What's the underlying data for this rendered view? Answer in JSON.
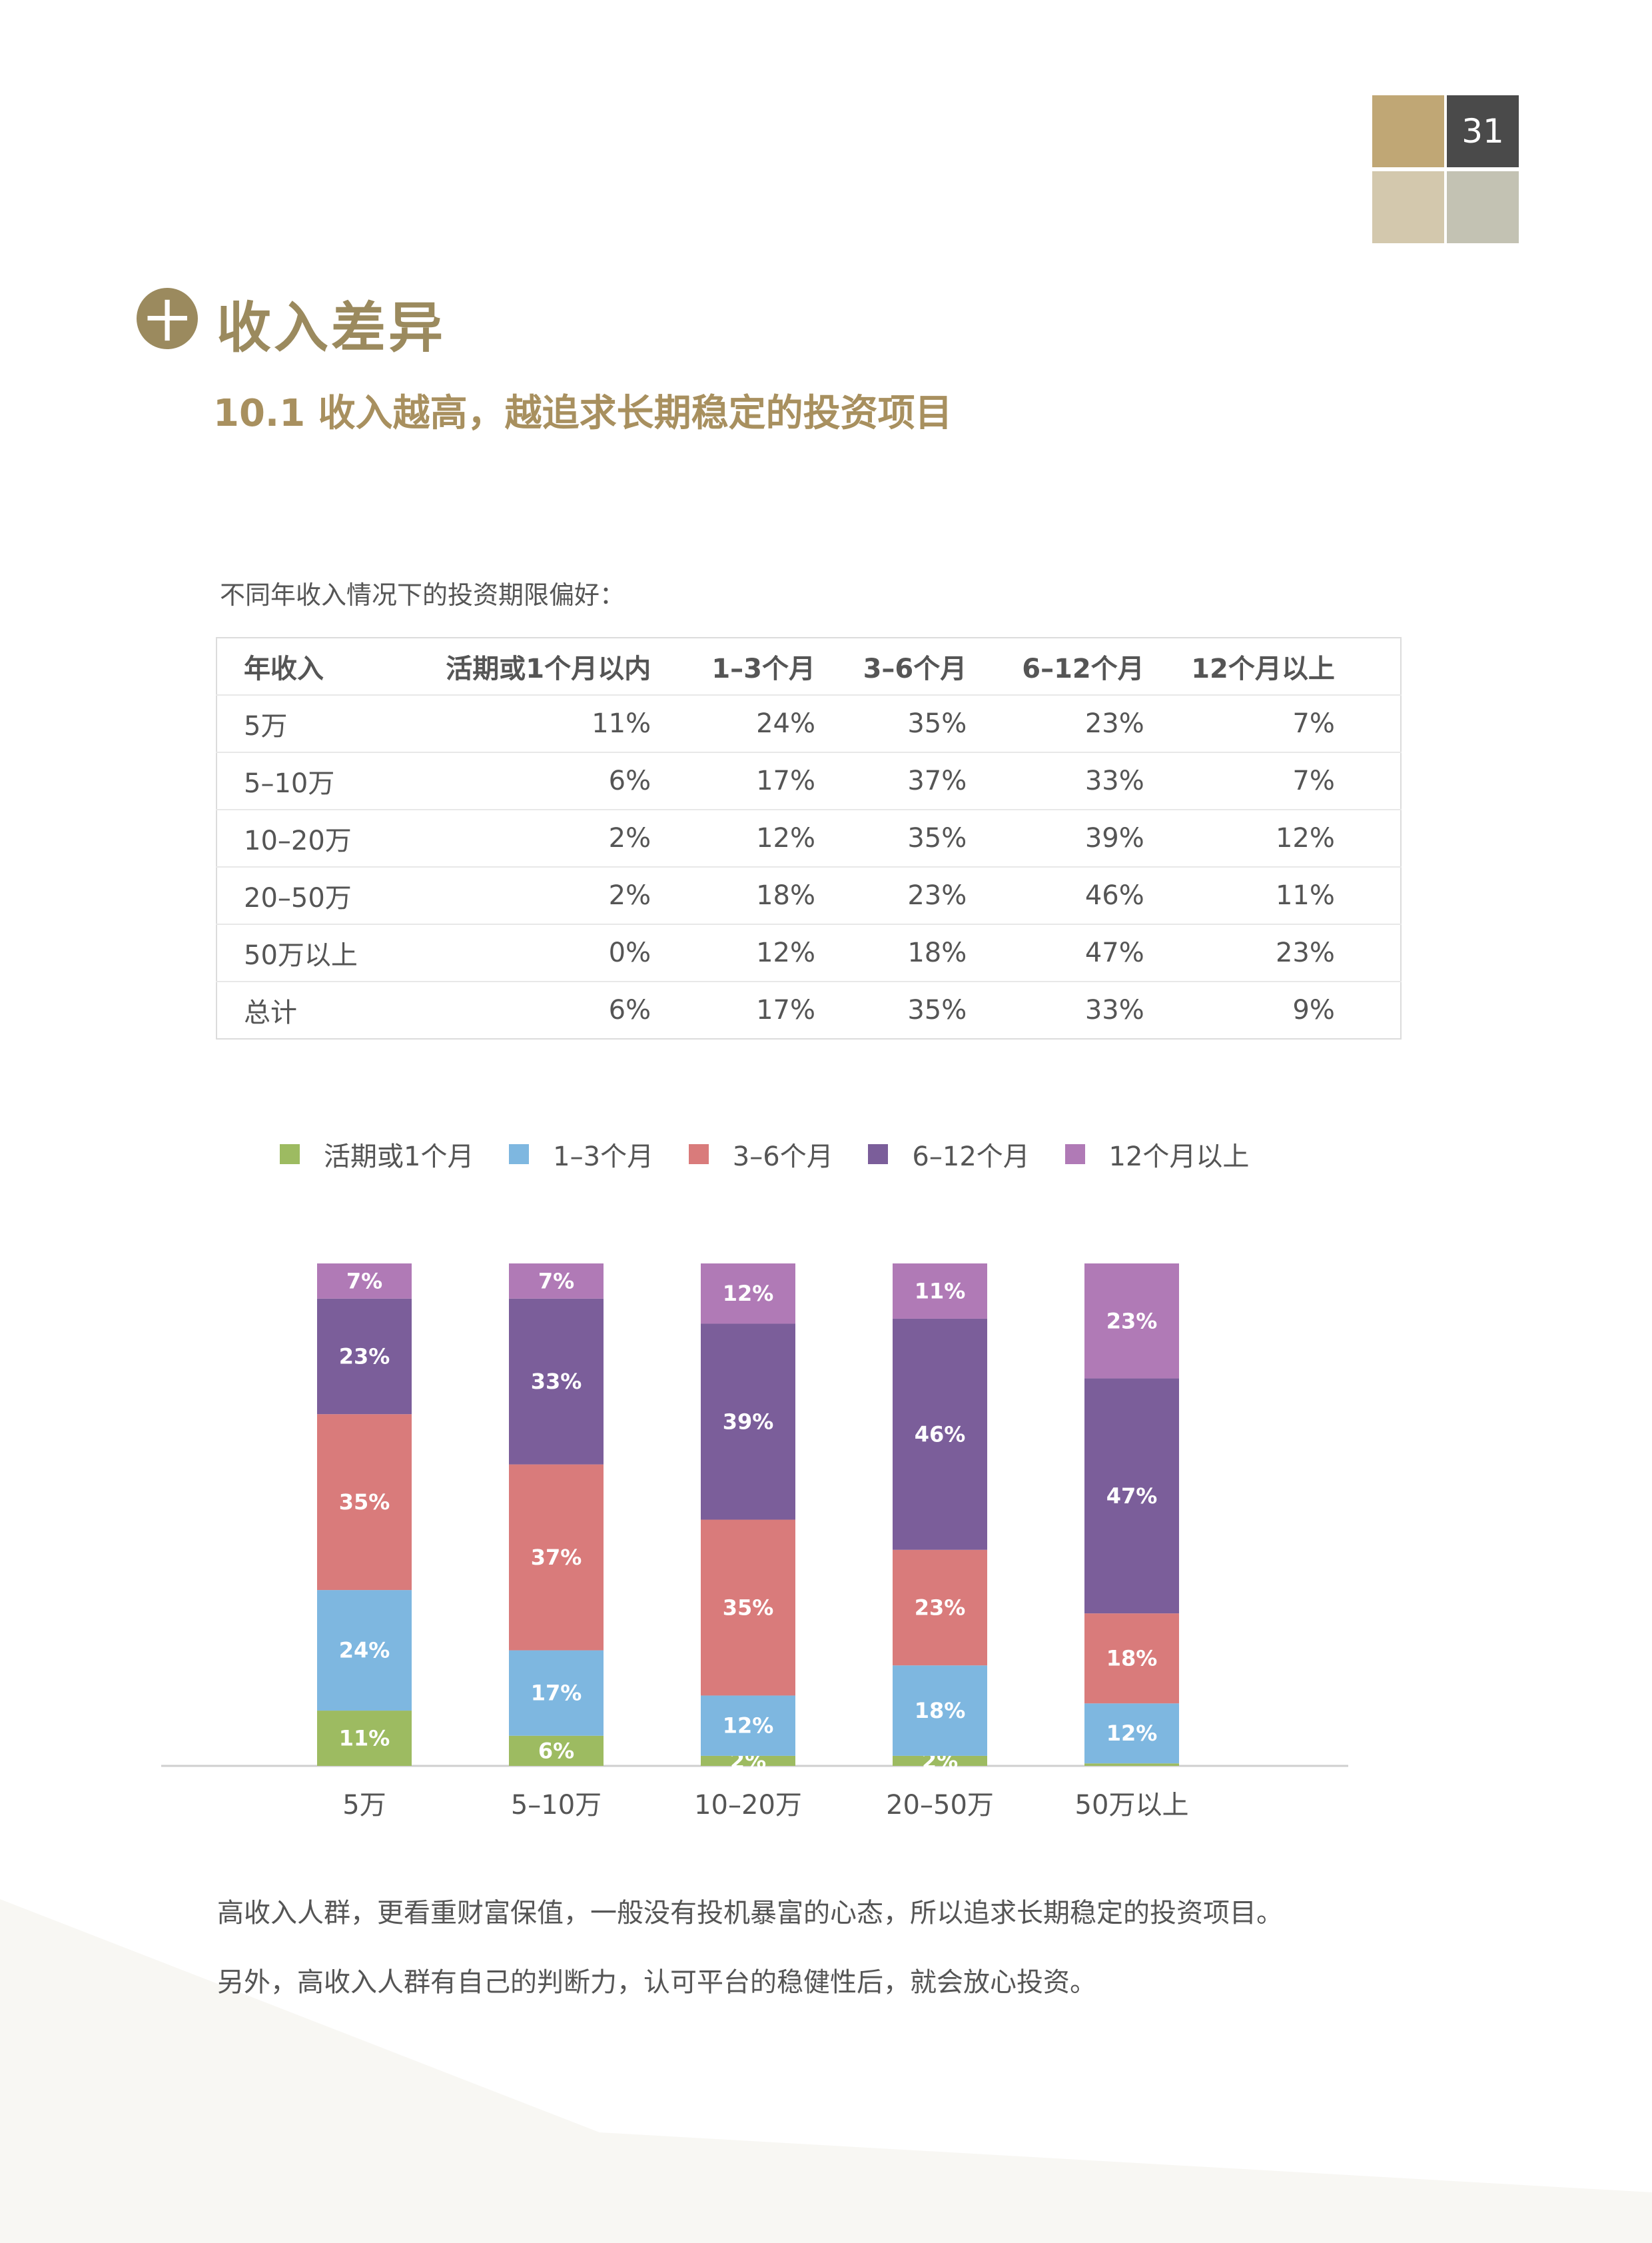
{
  "page_number": "31",
  "section": {
    "badge": "十",
    "title": "收入差异"
  },
  "subsection_title": "10.1 收入越高，越追求长期稳定的投资项目",
  "table_caption": "不同年收入情况下的投资期限偏好：",
  "table": {
    "headers": [
      "年收入",
      "活期或1个月以内",
      "1–3个月",
      "3–6个月",
      "6–12个月",
      "12个月以上"
    ],
    "rows": [
      [
        "5万",
        "11%",
        "24%",
        "35%",
        "23%",
        "7%"
      ],
      [
        "5–10万",
        "6%",
        "17%",
        "37%",
        "33%",
        "7%"
      ],
      [
        "10–20万",
        "2%",
        "12%",
        "35%",
        "39%",
        "12%"
      ],
      [
        "20–50万",
        "2%",
        "18%",
        "23%",
        "46%",
        "11%"
      ],
      [
        "50万以上",
        "0%",
        "12%",
        "18%",
        "47%",
        "23%"
      ],
      [
        "总计",
        "6%",
        "17%",
        "35%",
        "33%",
        "9%"
      ]
    ]
  },
  "chart_data": {
    "type": "bar",
    "stacked": true,
    "categories": [
      "5万",
      "5–10万",
      "10–20万",
      "20–50万",
      "50万以上"
    ],
    "series": [
      {
        "name": "活期或1个月",
        "color": "#9dbb61",
        "values": [
          11,
          6,
          2,
          2,
          0.5
        ],
        "labels": [
          "11%",
          "6%",
          "2%",
          "2%",
          ""
        ]
      },
      {
        "name": "1–3个月",
        "color": "#7eb7e0",
        "values": [
          24,
          17,
          12,
          18,
          12
        ],
        "labels": [
          "24%",
          "17%",
          "12%",
          "18%",
          "12%"
        ]
      },
      {
        "name": "3–6个月",
        "color": "#d97b7b",
        "values": [
          35,
          37,
          35,
          23,
          18
        ],
        "labels": [
          "35%",
          "37%",
          "35%",
          "23%",
          "18%"
        ]
      },
      {
        "name": "6–12个月",
        "color": "#7b5e9a",
        "values": [
          23,
          33,
          39,
          46,
          47
        ],
        "labels": [
          "23%",
          "33%",
          "39%",
          "46%",
          "47%"
        ]
      },
      {
        "name": "12个月以上",
        "color": "#b07ab6",
        "values": [
          7,
          7,
          12,
          11,
          23
        ],
        "labels": [
          "7%",
          "7%",
          "12%",
          "11%",
          "23%"
        ]
      }
    ],
    "legend_position": "top",
    "grid": false
  },
  "paragraphs": [
    "高收入人群，更看重财富保值，一般没有投机暴富的心态，所以追求长期稳定的投资项目。",
    "另外，高收入人群有自己的判断力，认可平台的稳健性后，就会放心投资。"
  ]
}
